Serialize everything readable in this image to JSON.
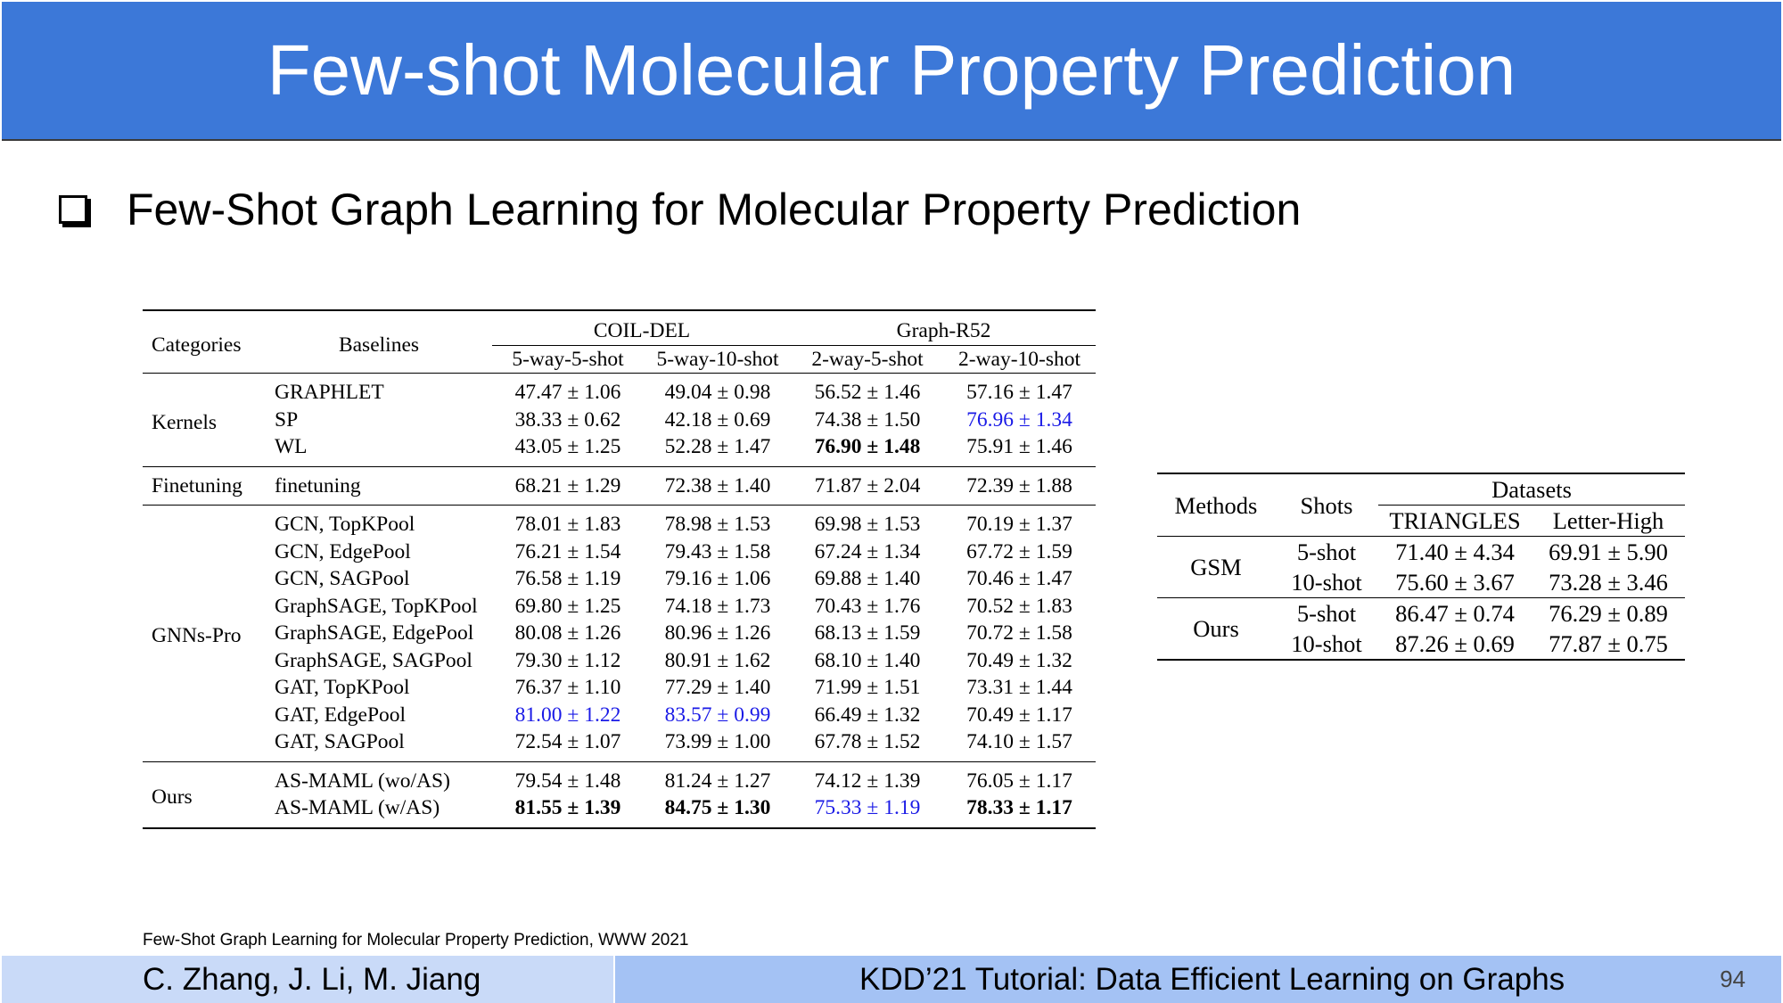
{
  "slide": {
    "title": "Few-shot Molecular Property Prediction",
    "bullet": "Few-Shot Graph Learning for Molecular Property Prediction",
    "reference": "Few-Shot Graph Learning for Molecular Property Prediction, WWW 2021",
    "footer_authors": "C. Zhang, J. Li, M. Jiang",
    "footer_tutorial": "KDD’21 Tutorial: Data Efficient Learning on Graphs",
    "page_number": "94"
  },
  "table1": {
    "h_categories": "Categories",
    "h_baselines": "Baselines",
    "h_coil": "COIL-DEL",
    "h_graph": "Graph-R52",
    "h_c1": "5-way-5-shot",
    "h_c2": "5-way-10-shot",
    "h_c3": "2-way-5-shot",
    "h_c4": "2-way-10-shot",
    "groups": [
      {
        "category": "Kernels",
        "rows": [
          {
            "baseline": "GRAPHLET",
            "v": [
              "47.47 ± 1.06",
              "49.04 ± 0.98",
              "56.52 ± 1.46",
              "57.16 ± 1.47"
            ]
          },
          {
            "baseline": "SP",
            "v": [
              "38.33 ± 0.62",
              "42.18 ± 0.69",
              "74.38 ± 1.50",
              "76.96 ± 1.34"
            ]
          },
          {
            "baseline": "WL",
            "v": [
              "43.05 ± 1.25",
              "52.28 ± 1.47",
              "76.90 ± 1.48",
              "75.91 ± 1.46"
            ]
          }
        ]
      },
      {
        "category": "Finetuning",
        "rows": [
          {
            "baseline": "finetuning",
            "v": [
              "68.21 ± 1.29",
              "72.38 ± 1.40",
              "71.87 ± 2.04",
              "72.39 ± 1.88"
            ]
          }
        ]
      },
      {
        "category": "GNNs-Pro",
        "rows": [
          {
            "baseline": "GCN, TopKPool",
            "v": [
              "78.01 ± 1.83",
              "78.98 ± 1.53",
              "69.98 ± 1.53",
              "70.19 ± 1.37"
            ]
          },
          {
            "baseline": "GCN, EdgePool",
            "v": [
              "76.21 ± 1.54",
              "79.43 ± 1.58",
              "67.24 ± 1.34",
              "67.72 ± 1.59"
            ]
          },
          {
            "baseline": "GCN, SAGPool",
            "v": [
              "76.58 ± 1.19",
              "79.16 ± 1.06",
              "69.88 ± 1.40",
              "70.46 ± 1.47"
            ]
          },
          {
            "baseline": "GraphSAGE, TopKPool",
            "v": [
              "69.80 ± 1.25",
              "74.18 ± 1.73",
              "70.43 ± 1.76",
              "70.52 ± 1.83"
            ]
          },
          {
            "baseline": "GraphSAGE, EdgePool",
            "v": [
              "80.08 ± 1.26",
              "80.96 ± 1.26",
              "68.13 ± 1.59",
              "70.72 ± 1.58"
            ]
          },
          {
            "baseline": "GraphSAGE, SAGPool",
            "v": [
              "79.30 ± 1.12",
              "80.91 ± 1.62",
              "68.10 ± 1.40",
              "70.49 ± 1.32"
            ]
          },
          {
            "baseline": "GAT, TopKPool",
            "v": [
              "76.37 ± 1.10",
              "77.29 ± 1.40",
              "71.99 ± 1.51",
              "73.31 ± 1.44"
            ]
          },
          {
            "baseline": "GAT, EdgePool",
            "v": [
              "81.00 ± 1.22",
              "83.57 ± 0.99",
              "66.49 ± 1.32",
              "70.49 ± 1.17"
            ]
          },
          {
            "baseline": "GAT, SAGPool",
            "v": [
              "72.54 ± 1.07",
              "73.99 ± 1.00",
              "67.78 ± 1.52",
              "74.10 ± 1.57"
            ]
          }
        ]
      },
      {
        "category": "Ours",
        "rows": [
          {
            "baseline": "AS-MAML (wo/AS)",
            "v": [
              "79.54 ± 1.48",
              "81.24 ± 1.27",
              "74.12 ± 1.39",
              "76.05 ± 1.17"
            ]
          },
          {
            "baseline": "AS-MAML (w/AS)",
            "v": [
              "81.55 ± 1.39",
              "84.75 ± 1.30",
              "75.33 ± 1.19",
              "78.33 ± 1.17"
            ]
          }
        ]
      }
    ],
    "colors": {
      "highlight_blue": "#1a1ae6"
    }
  },
  "table2": {
    "h_methods": "Methods",
    "h_shots": "Shots",
    "h_datasets": "Datasets",
    "h_d1": "TRIANGLES",
    "h_d2": "Letter-High",
    "groups": [
      {
        "method": "GSM",
        "rows": [
          {
            "shot": "5-shot",
            "v": [
              "71.40 ± 4.34",
              "69.91 ± 5.90"
            ]
          },
          {
            "shot": "10-shot",
            "v": [
              "75.60 ± 3.67",
              "73.28 ± 3.46"
            ]
          }
        ]
      },
      {
        "method": "Ours",
        "rows": [
          {
            "shot": "5-shot",
            "v": [
              "86.47 ± 0.74",
              "76.29 ± 0.89"
            ]
          },
          {
            "shot": "10-shot",
            "v": [
              "87.26 ± 0.69",
              "77.87 ± 0.75"
            ]
          }
        ]
      }
    ]
  },
  "colors": {
    "title_bar": "#3c78d8",
    "footer_left": "#c9daf8",
    "footer_right": "#a4c2f4"
  }
}
